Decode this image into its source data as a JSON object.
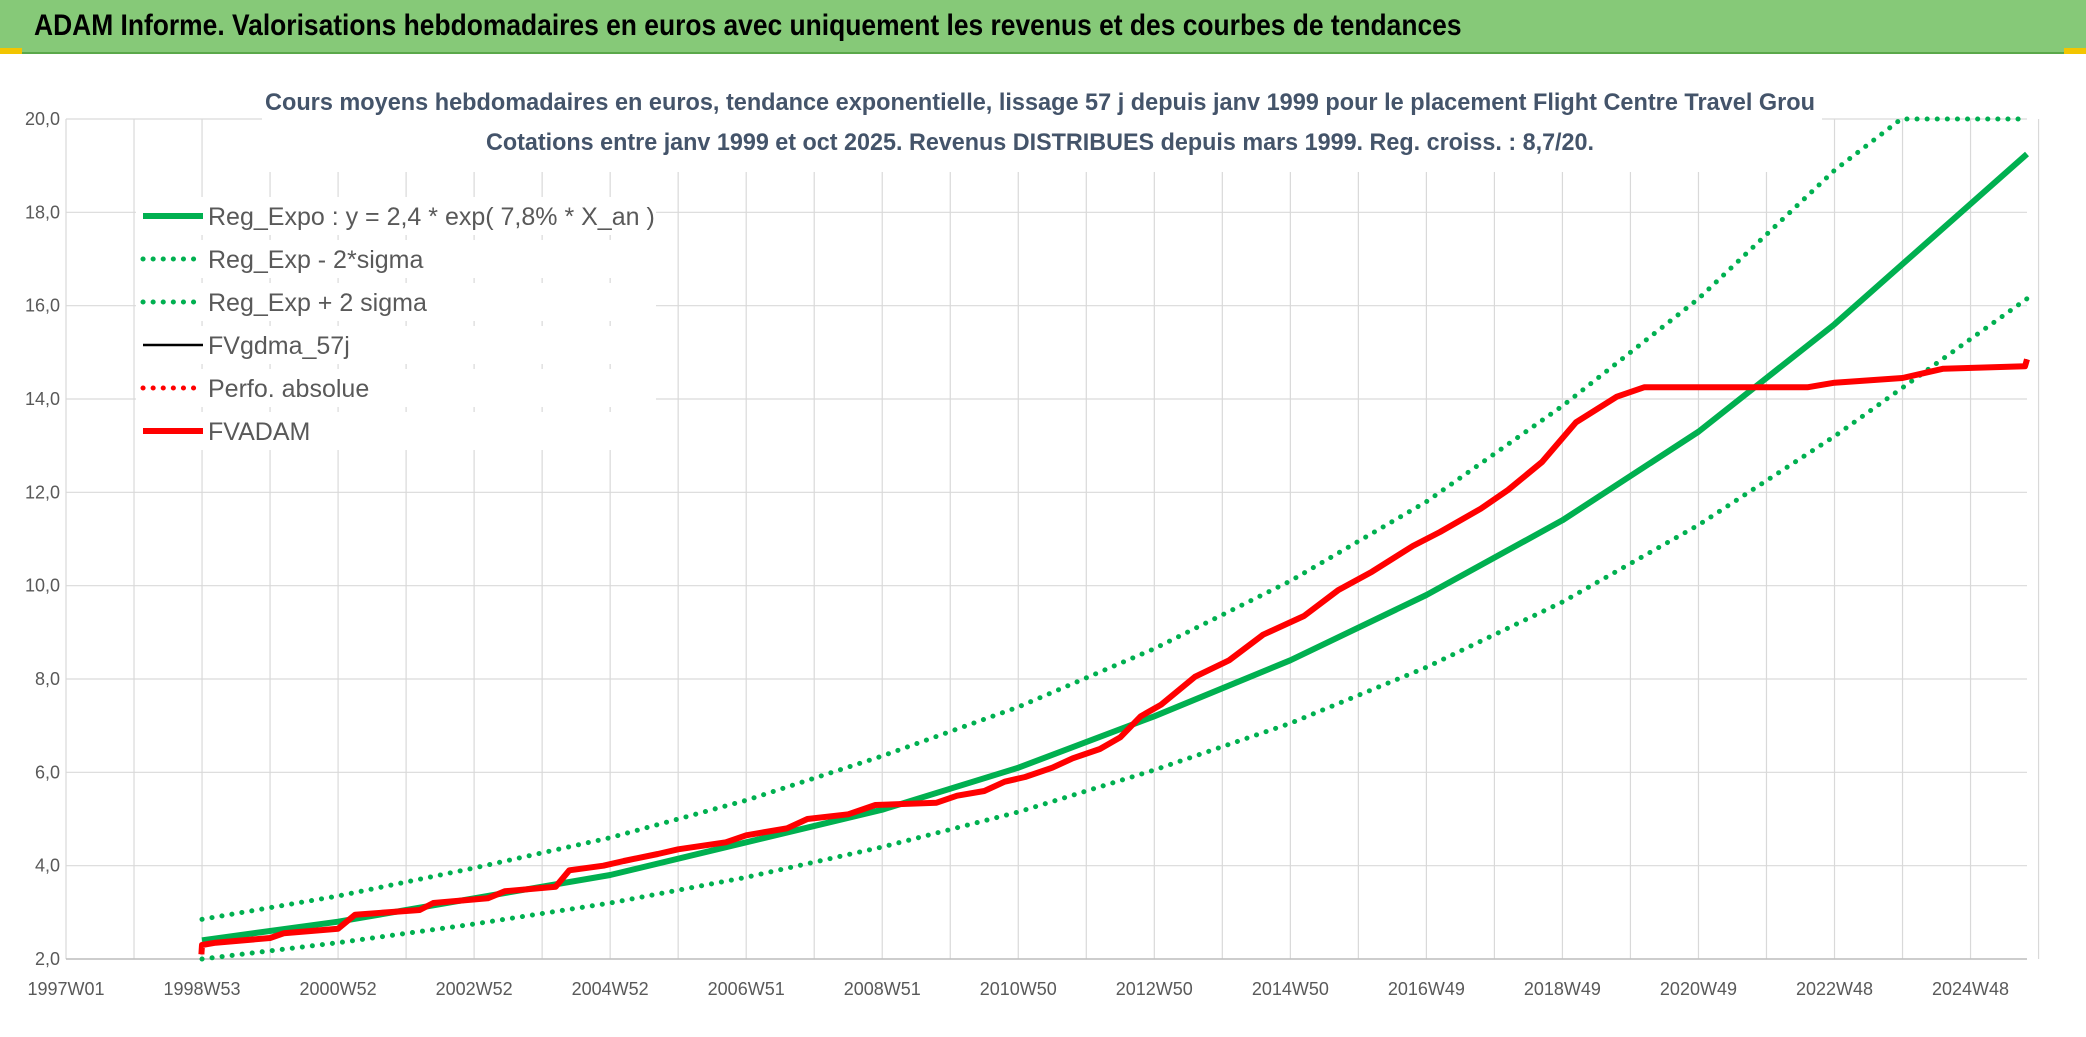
{
  "header": {
    "title": "ADAM Informe. Valorisations hebdomadaires en euros avec uniquement les revenus et des courbes de tendances"
  },
  "colors": {
    "banner": "#86c978",
    "green": "#00b050",
    "red": "#ff0000",
    "black": "#000000",
    "grid": "#d9d9d9",
    "accent_corner": "#f2c500"
  },
  "chart_data": {
    "type": "line",
    "title": "Cours moyens hebdomadaires en euros, tendance exponentielle, lissage 57 j depuis janv 1999 pour le placement Flight Centre Travel Grou",
    "subtitle": "Cotations entre janv 1999 et oct 2025. Revenus DISTRIBUES depuis mars 1999. Reg. croiss. : 8,7/20.",
    "xlabel": "",
    "ylabel": "",
    "x_tick_labels": [
      "1997W01",
      "1998W53",
      "2000W52",
      "2002W52",
      "2004W52",
      "2006W51",
      "2008W51",
      "2010W50",
      "2012W50",
      "2014W50",
      "2016W49",
      "2018W49",
      "2020W49",
      "2022W48",
      "2024W48"
    ],
    "x_range_years": [
      1997.0,
      2025.83
    ],
    "ylim": [
      2.0,
      20.0
    ],
    "y_ticks": [
      "2,0",
      "4,0",
      "6,0",
      "8,0",
      "10,0",
      "12,0",
      "14,0",
      "16,0",
      "18,0",
      "20,0"
    ],
    "grid": true,
    "legend_position": "top-left",
    "legend": [
      {
        "key": "reg",
        "label": "Reg_Expo : y = 2,4 * exp( 7,8% *  X_an )",
        "style": "solid-thick",
        "color": "#00b050"
      },
      {
        "key": "lo",
        "label": "Reg_Exp - 2*sigma",
        "style": "dotted",
        "color": "#00b050"
      },
      {
        "key": "hi",
        "label": "Reg_Exp + 2 sigma",
        "style": "dotted",
        "color": "#00b050"
      },
      {
        "key": "gdma",
        "label": "FVgdma_57j",
        "style": "solid",
        "color": "#000000"
      },
      {
        "key": "perf",
        "label": "Perfo. absolue",
        "style": "dotted",
        "color": "#ff0000"
      },
      {
        "key": "adam",
        "label": "FVADAM",
        "style": "solid-thick",
        "color": "#ff0000"
      }
    ],
    "series": [
      {
        "key": "reg",
        "x": [
          1999.0,
          2001.0,
          2003.0,
          2005.0,
          2007.0,
          2009.0,
          2011.0,
          2013.0,
          2015.0,
          2017.0,
          2019.0,
          2021.0,
          2023.0,
          2025.83
        ],
        "values": [
          2.4,
          2.8,
          3.3,
          3.8,
          4.5,
          5.2,
          6.1,
          7.2,
          8.4,
          9.8,
          11.4,
          13.3,
          15.6,
          19.25
        ]
      },
      {
        "key": "lo",
        "x": [
          1999.0,
          2001.0,
          2003.0,
          2005.0,
          2007.0,
          2009.0,
          2011.0,
          2013.0,
          2015.0,
          2017.0,
          2019.0,
          2021.0,
          2023.0,
          2025.83
        ],
        "values": [
          2.0,
          2.35,
          2.75,
          3.2,
          3.75,
          4.4,
          5.15,
          6.05,
          7.05,
          8.25,
          9.65,
          11.3,
          13.2,
          16.15
        ]
      },
      {
        "key": "hi",
        "x": [
          1999.0,
          2001.0,
          2003.0,
          2005.0,
          2007.0,
          2009.0,
          2011.0,
          2013.0,
          2015.0,
          2017.0,
          2019.0,
          2021.0,
          2023.0,
          2023.98,
          2025.83
        ],
        "values": [
          2.85,
          3.35,
          3.95,
          4.6,
          5.4,
          6.35,
          7.4,
          8.65,
          10.1,
          11.8,
          13.85,
          16.15,
          18.9,
          20.0,
          20.0
        ]
      },
      {
        "key": "adam",
        "x": [
          1998.99,
          1999.0,
          1999.2,
          2000.0,
          2000.2,
          2001.0,
          2001.25,
          2002.2,
          2002.4,
          2003.2,
          2003.45,
          2004.2,
          2004.4,
          2004.9,
          2005.2,
          2005.7,
          2006.0,
          2006.7,
          2007.0,
          2007.6,
          2007.9,
          2008.5,
          2008.9,
          2009.8,
          2010.1,
          2010.5,
          2010.8,
          2011.1,
          2011.5,
          2011.8,
          2012.2,
          2012.5,
          2012.8,
          2013.1,
          2013.6,
          2014.1,
          2014.6,
          2015.2,
          2015.7,
          2016.2,
          2016.8,
          2017.2,
          2017.8,
          2018.2,
          2018.7,
          2019.2,
          2019.8,
          2020.2,
          2022.6,
          2023.0,
          2024.0,
          2024.6,
          2025.8,
          2025.83
        ],
        "values": [
          2.1,
          2.3,
          2.35,
          2.45,
          2.55,
          2.65,
          2.95,
          3.05,
          3.2,
          3.3,
          3.45,
          3.55,
          3.9,
          4.0,
          4.1,
          4.25,
          4.35,
          4.5,
          4.65,
          4.8,
          5.0,
          5.1,
          5.3,
          5.35,
          5.5,
          5.6,
          5.8,
          5.9,
          6.1,
          6.3,
          6.5,
          6.75,
          7.2,
          7.45,
          8.05,
          8.4,
          8.95,
          9.35,
          9.9,
          10.3,
          10.85,
          11.15,
          11.65,
          12.05,
          12.65,
          13.5,
          14.05,
          14.25,
          14.25,
          14.35,
          14.45,
          14.65,
          14.7,
          14.85
        ]
      }
    ]
  }
}
